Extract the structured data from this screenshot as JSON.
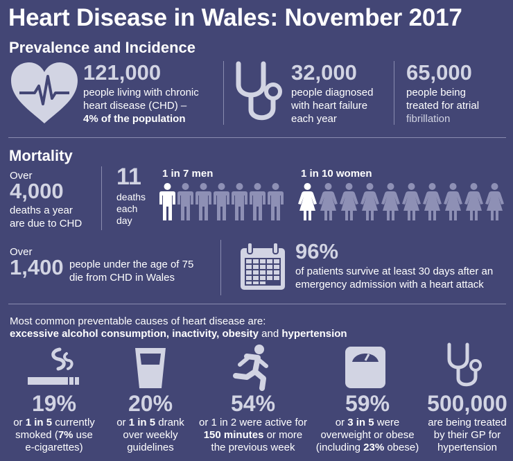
{
  "title": "Heart Disease in Wales: November 2017",
  "prevalence": {
    "heading": "Prevalence and Incidence",
    "chd": {
      "number": "121,000",
      "line1": "people living with chronic",
      "line2": "heart disease (CHD) –",
      "line3": "4% of the population"
    },
    "heart_failure": {
      "number": "32,000",
      "line1": "people diagnosed",
      "line2": "with heart failure",
      "line3": "each year"
    },
    "atrial": {
      "number": "65,000",
      "line1": "people being",
      "line2": "treated for atrial",
      "line3": "fibrillation"
    }
  },
  "mortality": {
    "heading": "Mortality",
    "over_label": "Over",
    "deaths_number": "4,000",
    "deaths_line1": "deaths a year",
    "deaths_line2": "are due to CHD",
    "daily_number": "11",
    "daily_line1": "deaths",
    "daily_line2": "each",
    "daily_line3": "day",
    "men_label": "1 in 7 men",
    "women_label": "1 in 10 women",
    "men_total": 7,
    "men_highlight": 1,
    "women_total": 10,
    "women_highlight": 1,
    "under75_over": "Over",
    "under75_number": "1,400",
    "under75_line1": "people under the age of 75",
    "under75_line2": "die from CHD in Wales",
    "survive_number": "96%",
    "survive_line1": "of patients survive at least 30 days after an",
    "survive_line2": "emergency admission with a heart attack"
  },
  "causes": {
    "intro": "Most common preventable causes of heart disease are:",
    "list_a": "excessive alcohol consumption, inactivity, obesity",
    "list_and": " and ",
    "list_b": "hypertension",
    "items": [
      {
        "icon": "cigarette-icon",
        "pct": "19%",
        "l1a": "or ",
        "l1b": "1 in 5",
        "l1c": " currently",
        "l2a": "smoked (",
        "l2b": "7%",
        "l2c": " use",
        "l3": "e-cigarettes)"
      },
      {
        "icon": "glass-icon",
        "pct": "20%",
        "l1a": "or ",
        "l1b": "1 in 5",
        "l1c": " drank",
        "l2": "over weekly",
        "l3": "guidelines"
      },
      {
        "icon": "runner-icon",
        "pct": "54%",
        "l1": "or 1 in 2 were active for",
        "l2a": "150 minutes",
        "l2b": " or more",
        "l3": "the previous week"
      },
      {
        "icon": "scale-icon",
        "pct": "59%",
        "l1a": "or ",
        "l1b": "3 in 5",
        "l1c": " were",
        "l2": "overweight or obese",
        "l3a": "(including ",
        "l3b": "23%",
        "l3c": " obese)"
      },
      {
        "icon": "stethoscope-icon",
        "pct": "500,000",
        "l1": "are being treated",
        "l2": "by their GP for",
        "l3": "hypertension"
      }
    ]
  },
  "colors": {
    "background": "#434675",
    "accent": "#d2d4e3",
    "text": "#ffffff"
  }
}
